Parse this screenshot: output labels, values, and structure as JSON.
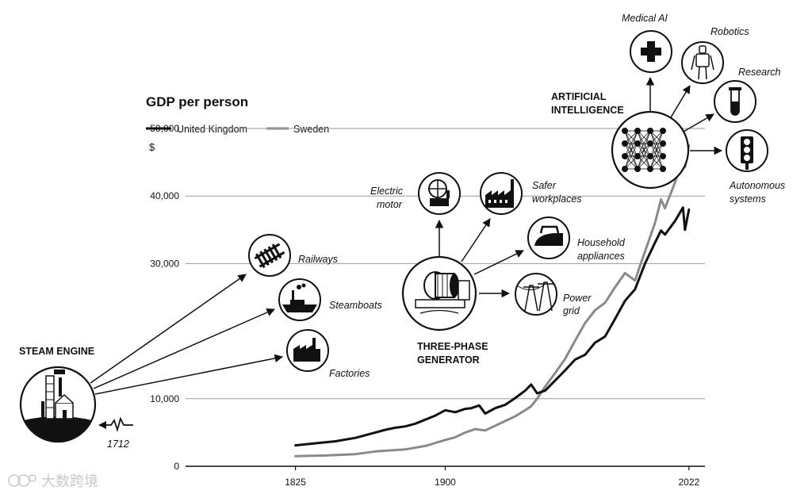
{
  "chart_data": {
    "type": "line",
    "title": "GDP per person",
    "ylabel": "$",
    "ylim": [
      0,
      52000
    ],
    "xlim": [
      1770,
      2030
    ],
    "y_ticks": [
      {
        "value": 0,
        "label": "0"
      },
      {
        "value": 10000,
        "label": "10,000"
      },
      {
        "value": 30000,
        "label": "30,000"
      },
      {
        "value": 40000,
        "label": "40,000"
      },
      {
        "value": 50000,
        "label": "50,000"
      }
    ],
    "x_ticks": [
      {
        "value": 1825,
        "label": "1825"
      },
      {
        "value": 1900,
        "label": "1900"
      },
      {
        "value": 2022,
        "label": "2022"
      }
    ],
    "grid": true,
    "legend": "top-left",
    "series": [
      {
        "name": "United Kingdom",
        "color": "#111111",
        "x": [
          1825,
          1835,
          1845,
          1855,
          1865,
          1870,
          1875,
          1880,
          1885,
          1890,
          1895,
          1900,
          1905,
          1910,
          1913,
          1917,
          1920,
          1925,
          1930,
          1935,
          1940,
          1943,
          1946,
          1950,
          1955,
          1960,
          1965,
          1970,
          1975,
          1980,
          1985,
          1990,
          1995,
          2000,
          2005,
          2008,
          2010,
          2015,
          2019,
          2020,
          2022
        ],
        "values": [
          3100,
          3400,
          3700,
          4200,
          5000,
          5400,
          5700,
          5900,
          6300,
          6900,
          7500,
          8300,
          8000,
          8500,
          8600,
          9000,
          7800,
          8600,
          9100,
          10100,
          11200,
          12100,
          10800,
          11200,
          12700,
          14200,
          15800,
          16500,
          18300,
          19200,
          21800,
          24500,
          26200,
          30000,
          33100,
          34900,
          34300,
          36300,
          38300,
          35000,
          38000
        ]
      },
      {
        "name": "Sweden",
        "color": "#8a8a8a",
        "x": [
          1825,
          1840,
          1855,
          1865,
          1870,
          1880,
          1890,
          1900,
          1905,
          1910,
          1915,
          1920,
          1925,
          1930,
          1935,
          1940,
          1943,
          1946,
          1950,
          1955,
          1960,
          1965,
          1970,
          1975,
          1980,
          1985,
          1990,
          1995,
          2000,
          2005,
          2008,
          2010,
          2015,
          2019,
          2020,
          2022
        ],
        "values": [
          1500,
          1600,
          1800,
          2200,
          2300,
          2500,
          3000,
          3900,
          4300,
          5000,
          5500,
          5300,
          6000,
          6700,
          7400,
          8300,
          8900,
          10000,
          11800,
          13800,
          15900,
          18600,
          21200,
          23100,
          24200,
          26500,
          28600,
          27500,
          31800,
          36000,
          39500,
          38200,
          42000,
          45700,
          44300,
          47500
        ]
      }
    ]
  },
  "legend": {
    "uk": "United Kingdom",
    "sweden": "Sweden"
  },
  "annotations": {
    "steam_engine": "STEAM ENGINE",
    "year_1712": "1712",
    "railways": "Railways",
    "steamboats": "Steamboats",
    "factories": "Factories",
    "three_phase_1": "THREE-PHASE",
    "three_phase_2": "GENERATOR",
    "electric_motor_1": "Electric",
    "electric_motor_2": "motor",
    "safer_1": "Safer",
    "safer_2": "workplaces",
    "household_1": "Household",
    "household_2": "appliances",
    "power_grid_1": "Power",
    "power_grid_2": "grid",
    "ai_1": "ARTIFICIAL",
    "ai_2": "INTELLIGENCE",
    "medical_ai": "Medical AI",
    "robotics": "Robotics",
    "research": "Research",
    "autonomous_1": "Autonomous",
    "autonomous_2": "systems"
  },
  "icons": {
    "steam_engine": "steam-engine-icon",
    "railways": "railway-track-icon",
    "steamboats": "steamboat-icon",
    "factories": "factory-icon",
    "generator": "generator-icon",
    "electric_motor": "electric-motor-icon",
    "safer_workplaces": "modern-factory-icon",
    "household": "iron-icon",
    "power_grid": "power-pylon-icon",
    "ai": "neural-network-icon",
    "medical_ai": "medical-cross-icon",
    "robotics": "robot-icon",
    "research": "test-tube-icon",
    "autonomous": "traffic-light-icon"
  },
  "watermark": "大数跨境"
}
